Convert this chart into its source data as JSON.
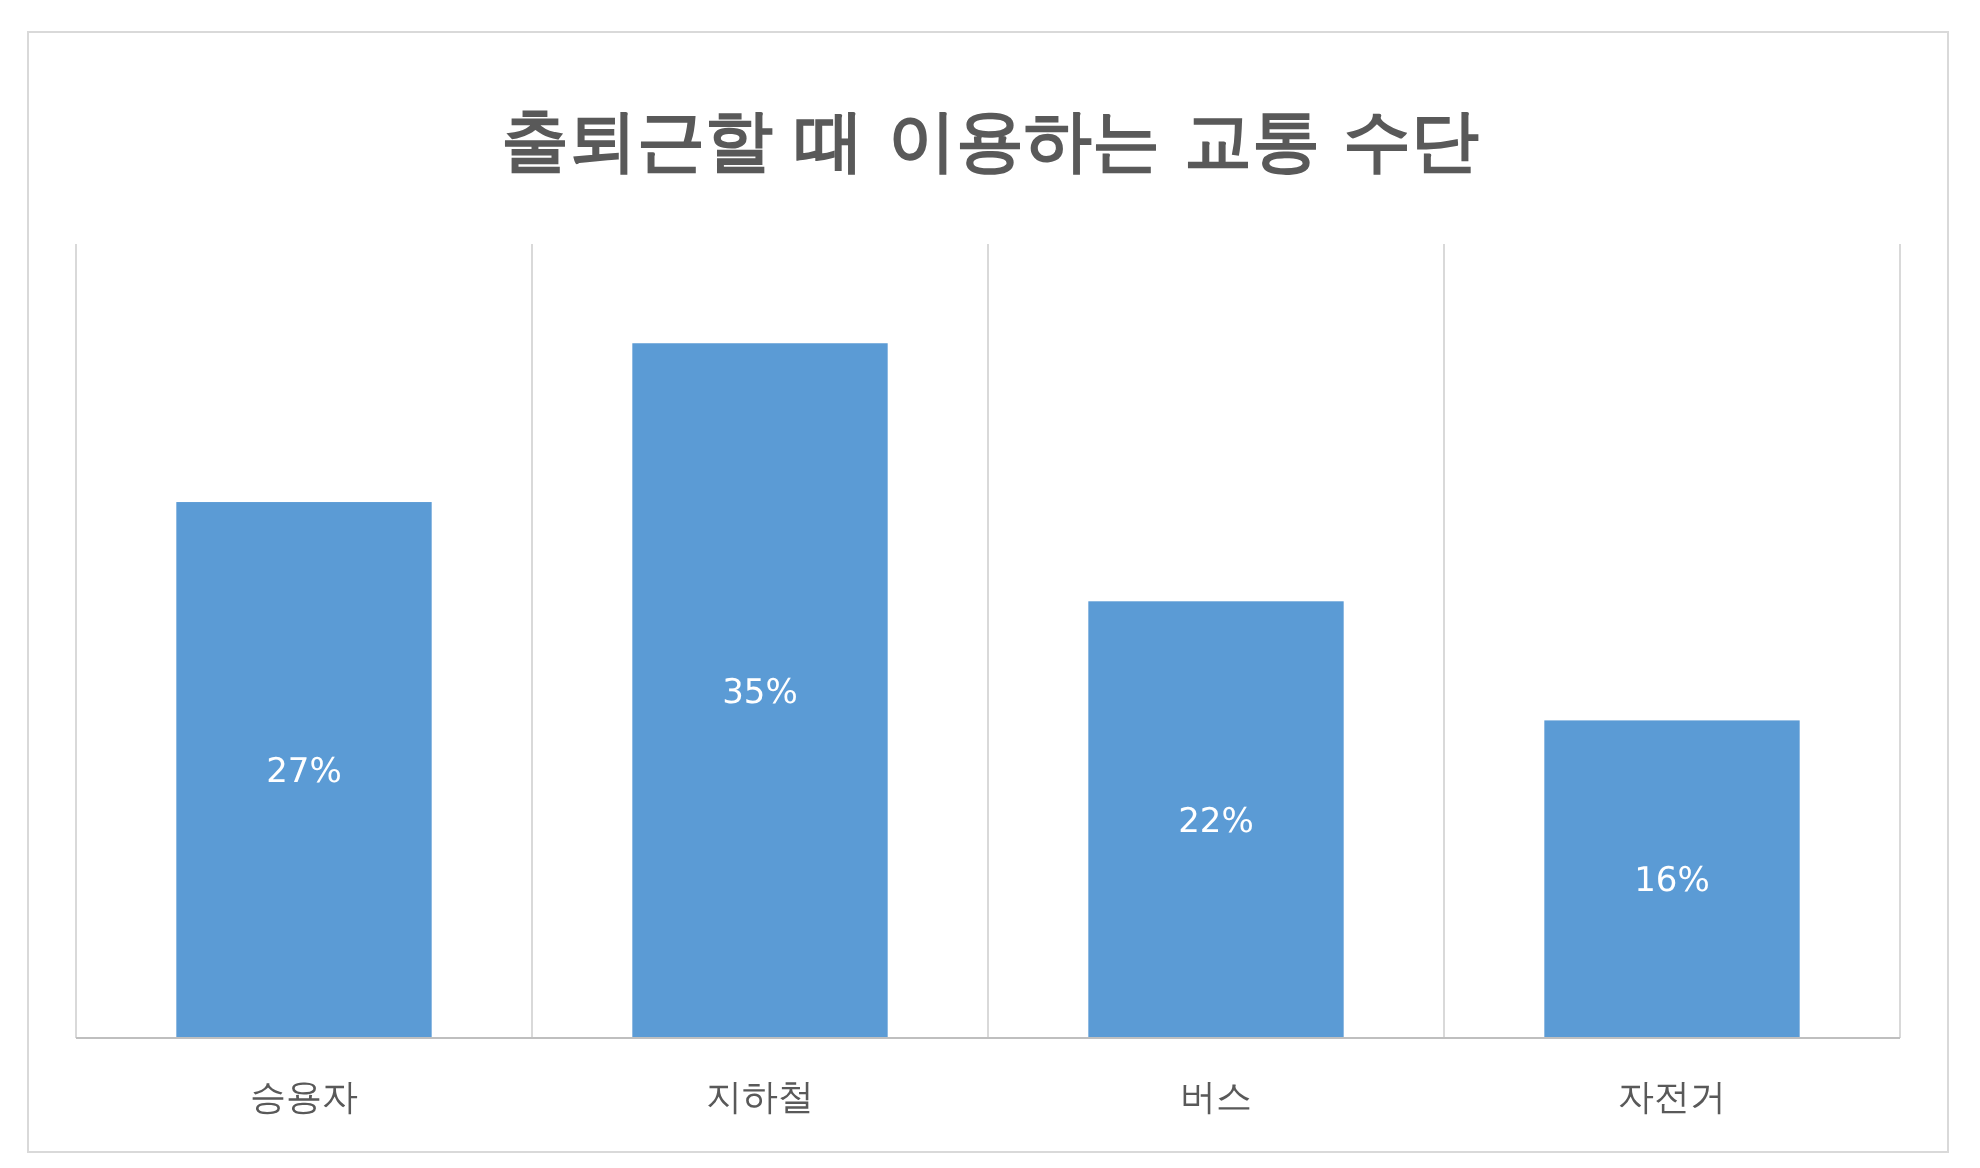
{
  "chart_data": {
    "type": "bar",
    "title": "출퇴근할 때 이용하는 교통 수단",
    "categories": [
      "승용자",
      "지하철",
      "버스",
      "자전거"
    ],
    "values": [
      27,
      35,
      22,
      16
    ],
    "value_labels": [
      "27%",
      "35%",
      "22%",
      "16%"
    ],
    "color": "#5b9bd5",
    "ylim": [
      0,
      40
    ],
    "tick_labels": "x",
    "grid": "x"
  }
}
